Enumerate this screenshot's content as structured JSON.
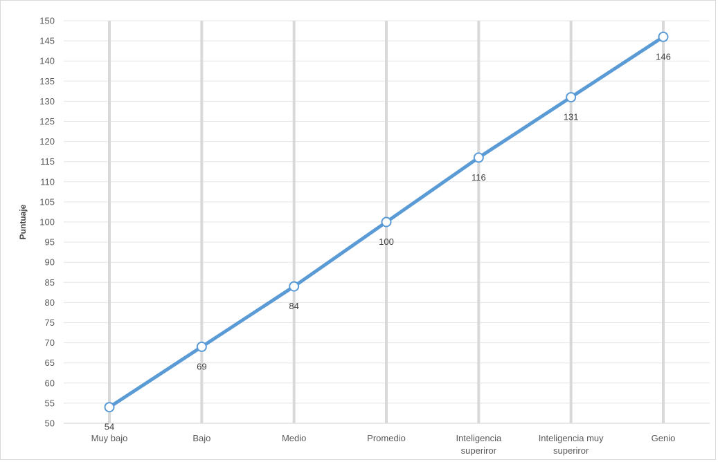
{
  "chart_data": {
    "type": "line",
    "title": "",
    "xlabel": "",
    "ylabel": "Puntuaje",
    "categories": [
      [
        "Muy bajo"
      ],
      [
        "Bajo"
      ],
      [
        "Medio"
      ],
      [
        "Promedio"
      ],
      [
        "Inteligencia",
        "superiror"
      ],
      [
        "Inteligencia muy",
        "superiror"
      ],
      [
        "Genio"
      ]
    ],
    "series": [
      {
        "values": [
          54,
          69,
          84,
          100,
          116,
          131,
          146
        ],
        "color": "#5b9bd5"
      }
    ],
    "data_labels": [
      "54",
      "69",
      "84",
      "100",
      "116",
      "131",
      "146"
    ],
    "ylim": [
      50,
      150
    ],
    "ystep": 5,
    "grid": {
      "horizontal": true,
      "vertical": true,
      "horizontal_color": "#e5e5e5",
      "vertical_color": "#d9d9d9"
    },
    "legend": "none"
  }
}
